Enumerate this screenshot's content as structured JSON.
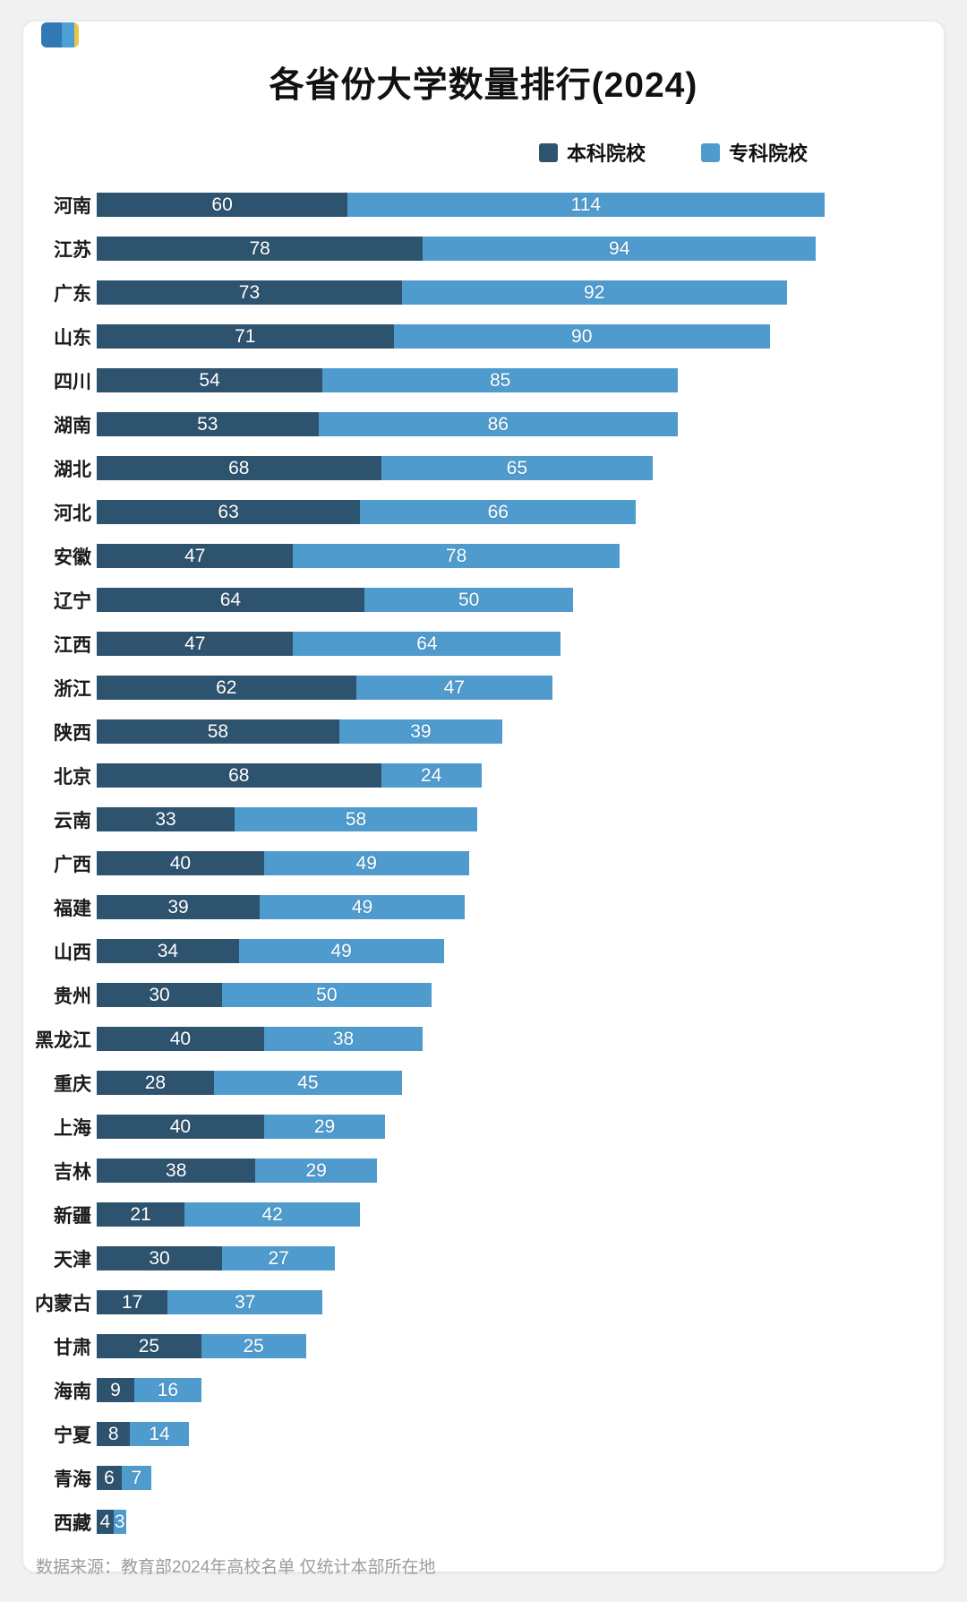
{
  "page": {
    "title": "各省份大学数量排行(2024)",
    "source_note": "数据来源：教育部2024年高校名单 仅统计本部所在地"
  },
  "legend": {
    "items": [
      {
        "label": "本科院校",
        "color": "#2e536f"
      },
      {
        "label": "专科院校",
        "color": "#4f9bce"
      }
    ]
  },
  "logo": {
    "colors": [
      "#3278b5",
      "#4ba0d6",
      "#e8c64b"
    ]
  },
  "colors": {
    "background": "#f1f1f2",
    "card": "#ffffff",
    "benke_bar": "#2e536f",
    "zhuanke_bar": "#4f9bce",
    "title_text": "#111111",
    "source_text": "#9c9c9c"
  },
  "chart_data": {
    "type": "bar",
    "orientation": "horizontal",
    "stacked": true,
    "title": "各省份大学数量排行(2024)",
    "xlabel": "",
    "ylabel": "",
    "xlim": [
      0,
      200
    ],
    "grid": false,
    "legend_position": "top-right",
    "value_labels": true,
    "categories": [
      "河南",
      "江苏",
      "广东",
      "山东",
      "四川",
      "湖南",
      "湖北",
      "河北",
      "安徽",
      "辽宁",
      "江西",
      "浙江",
      "陕西",
      "北京",
      "云南",
      "广西",
      "福建",
      "山西",
      "贵州",
      "黑龙江",
      "重庆",
      "上海",
      "吉林",
      "新疆",
      "天津",
      "内蒙古",
      "甘肃",
      "海南",
      "宁夏",
      "青海",
      "西藏"
    ],
    "series": [
      {
        "name": "本科院校",
        "color": "#2e536f",
        "values": [
          60,
          78,
          73,
          71,
          54,
          53,
          68,
          63,
          47,
          64,
          47,
          62,
          58,
          68,
          33,
          40,
          39,
          34,
          30,
          40,
          28,
          40,
          38,
          21,
          30,
          17,
          25,
          9,
          8,
          6,
          4
        ]
      },
      {
        "name": "专科院校",
        "color": "#4f9bce",
        "values": [
          114,
          94,
          92,
          90,
          85,
          86,
          65,
          66,
          78,
          50,
          64,
          47,
          39,
          24,
          58,
          49,
          49,
          49,
          50,
          38,
          45,
          29,
          29,
          42,
          27,
          37,
          25,
          16,
          14,
          7,
          3
        ]
      }
    ]
  }
}
